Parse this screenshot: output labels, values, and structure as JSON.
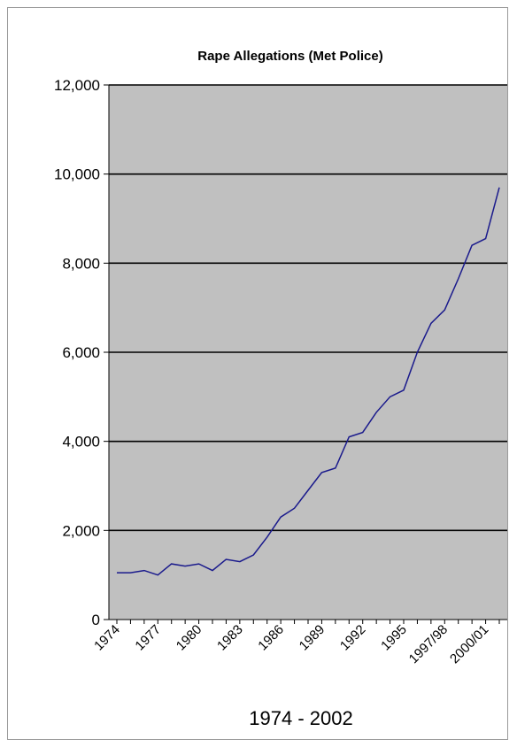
{
  "chart_data": {
    "type": "line",
    "title": "Rape Allegations (Met Police)",
    "xlabel": "1974 - 2002",
    "ylabel": "",
    "ylim": [
      0,
      12000
    ],
    "yticks": [
      "0",
      "2,000",
      "4,000",
      "6,000",
      "8,000",
      "10,000",
      "12,000"
    ],
    "ytick_values": [
      0,
      2000,
      4000,
      6000,
      8000,
      10000,
      12000
    ],
    "x_tick_labels": [
      {
        "index": 0,
        "label": "1974"
      },
      {
        "index": 3,
        "label": "1977"
      },
      {
        "index": 6,
        "label": "1980"
      },
      {
        "index": 9,
        "label": "1983"
      },
      {
        "index": 12,
        "label": "1986"
      },
      {
        "index": 15,
        "label": "1989"
      },
      {
        "index": 18,
        "label": "1992"
      },
      {
        "index": 21,
        "label": "1995"
      },
      {
        "index": 24,
        "label": "1997/98"
      },
      {
        "index": 27,
        "label": "2000/01"
      }
    ],
    "grid": "horizontal",
    "plot_background": "#c0c0c0",
    "line_color": "#1a1a8c",
    "series": [
      {
        "values": [
          1050,
          1050,
          1100,
          1000,
          1250,
          1200,
          1250,
          1100,
          1350,
          1300,
          1450,
          1850,
          2300,
          2500,
          2900,
          3300,
          3400,
          4100,
          4200,
          4650,
          5000,
          5150,
          6000,
          6650,
          6950,
          7650,
          8400,
          8550,
          9700
        ]
      }
    ]
  }
}
